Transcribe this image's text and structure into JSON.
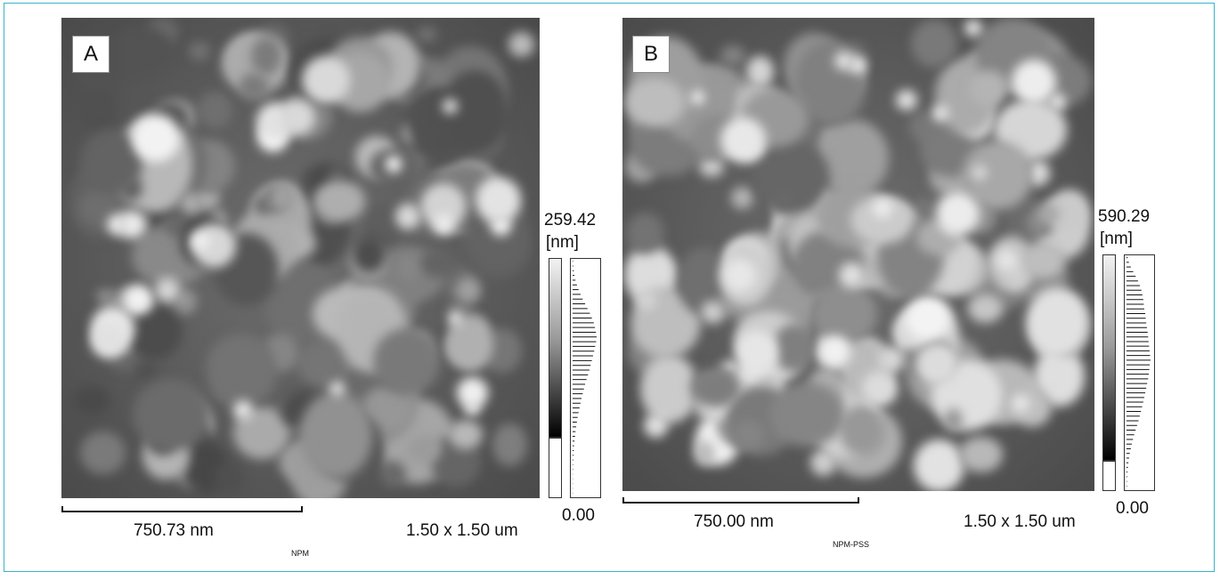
{
  "panels": [
    {
      "letter": "A",
      "max_value": "259.42",
      "unit": "[nm]",
      "min_value": "0.00",
      "scale_bar_label": "750.73 nm",
      "field_size": "1.50 x 1.50 um",
      "sample_label": "NPM",
      "histogram_profile": [
        0.02,
        0.03,
        0.05,
        0.08,
        0.12,
        0.18,
        0.25,
        0.33,
        0.42,
        0.52,
        0.62,
        0.72,
        0.8,
        0.88,
        0.93,
        0.97,
        1.0,
        0.98,
        0.94,
        0.9,
        0.85,
        0.8,
        0.75,
        0.7,
        0.64,
        0.58,
        0.52,
        0.47,
        0.42,
        0.37,
        0.33,
        0.29,
        0.25,
        0.21,
        0.18,
        0.15,
        0.12,
        0.1,
        0.08,
        0.06,
        0.05,
        0.04,
        0.03,
        0.02,
        0.02,
        0.01,
        0.01,
        0.01,
        0.01,
        0.01
      ]
    },
    {
      "letter": "B",
      "max_value": "590.29",
      "unit": "[nm]",
      "min_value": "0.00",
      "scale_bar_label": "750.00 nm",
      "field_size": "1.50 x 1.50 um",
      "sample_label": "NPM-PSS",
      "histogram_profile": [
        0.05,
        0.1,
        0.18,
        0.28,
        0.38,
        0.48,
        0.56,
        0.62,
        0.66,
        0.7,
        0.72,
        0.74,
        0.78,
        0.8,
        0.82,
        0.85,
        0.88,
        0.9,
        0.92,
        0.94,
        0.96,
        0.98,
        1.0,
        0.97,
        0.95,
        0.93,
        0.9,
        0.86,
        0.82,
        0.78,
        0.74,
        0.7,
        0.65,
        0.6,
        0.55,
        0.5,
        0.44,
        0.38,
        0.32,
        0.27,
        0.22,
        0.18,
        0.14,
        0.11,
        0.08,
        0.06,
        0.04,
        0.03,
        0.02,
        0.02
      ]
    }
  ],
  "colors": {
    "frame": "#39b4c9"
  }
}
